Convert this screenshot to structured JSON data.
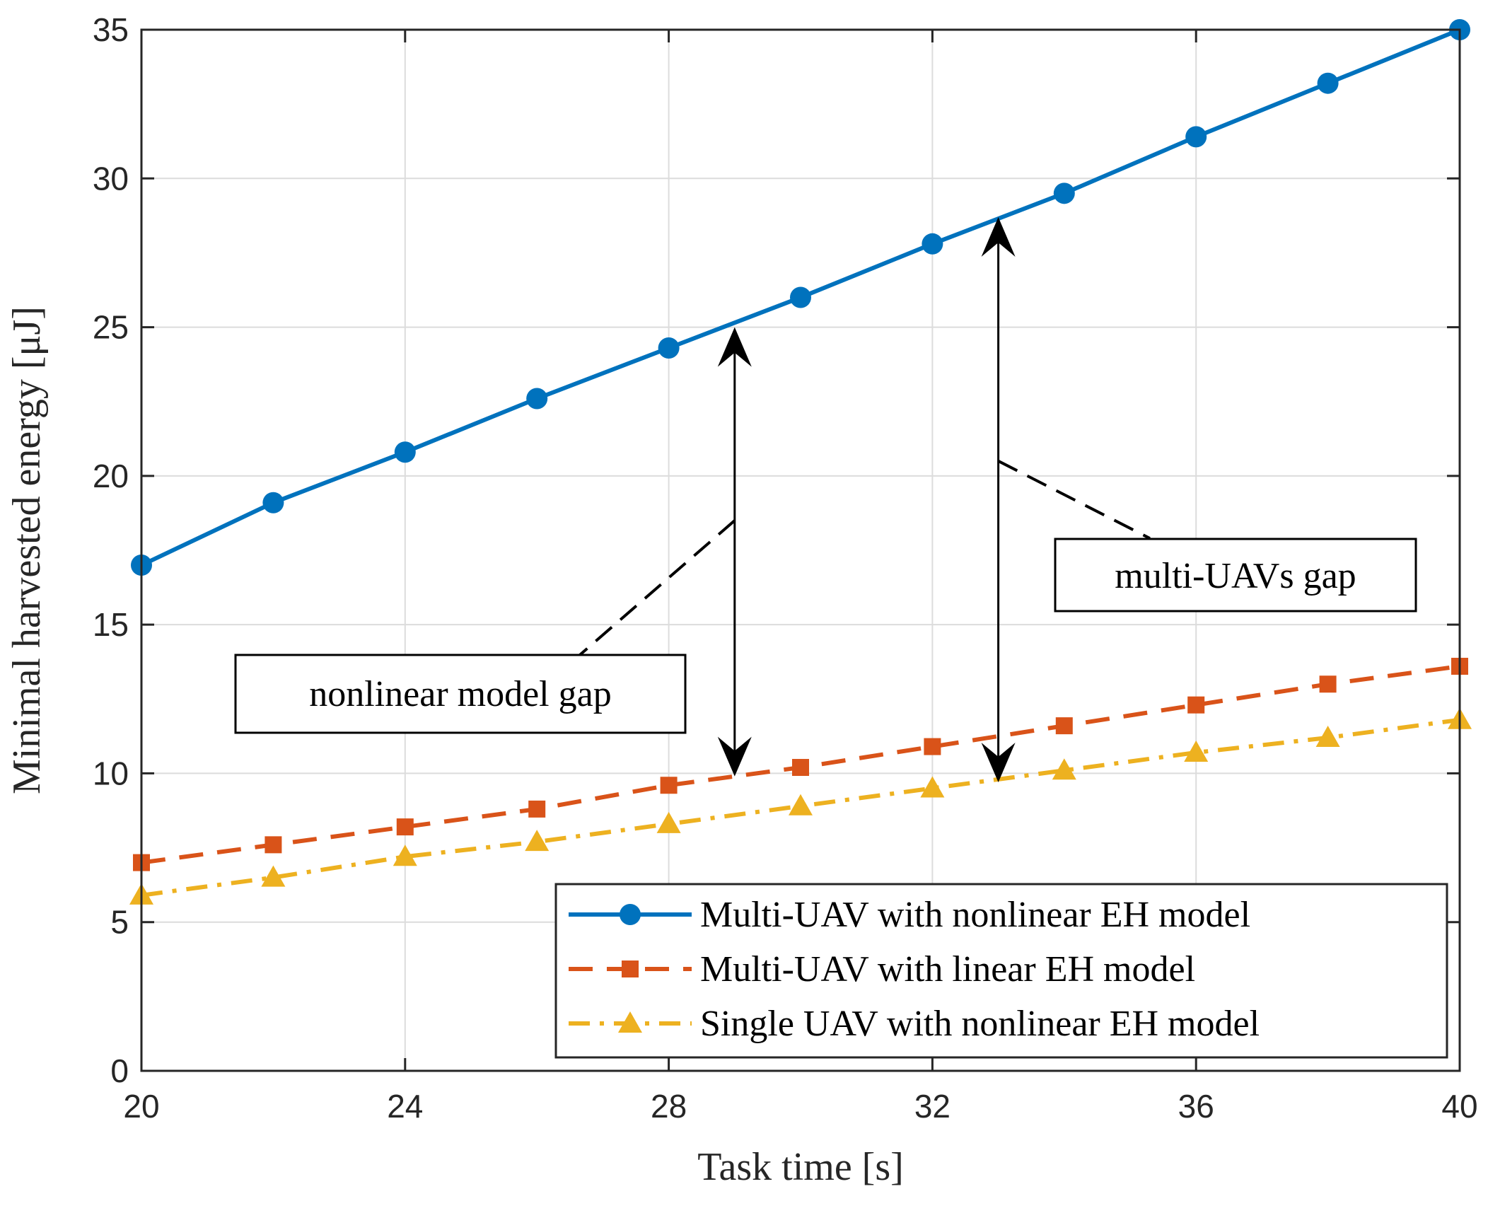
{
  "chart_data": {
    "type": "line",
    "title": "",
    "xlabel": "Task time [s]",
    "ylabel": "Minimal harvested energy [μJ]",
    "xlim": [
      20,
      40
    ],
    "ylim": [
      0,
      35
    ],
    "xticks": [
      20,
      24,
      28,
      32,
      36,
      40
    ],
    "yticks": [
      0,
      5,
      10,
      15,
      20,
      25,
      30,
      35
    ],
    "grid": true,
    "legend_position": "bottom-right",
    "x": [
      20,
      22,
      24,
      26,
      28,
      30,
      32,
      34,
      36,
      38,
      40
    ],
    "series": [
      {
        "name": "Multi-UAV with nonlinear EH model",
        "color": "#0072BD",
        "line_style": "solid",
        "marker": "circle",
        "values": [
          17.0,
          19.1,
          20.8,
          22.6,
          24.3,
          26.0,
          27.8,
          29.5,
          31.4,
          33.2,
          35.0
        ]
      },
      {
        "name": "Multi-UAV with linear EH model",
        "color": "#D95319",
        "line_style": "dashed",
        "marker": "square",
        "values": [
          7.0,
          7.6,
          8.2,
          8.8,
          9.6,
          10.2,
          10.9,
          11.6,
          12.3,
          13.0,
          13.6
        ]
      },
      {
        "name": "Single UAV with nonlinear EH model",
        "color": "#EDB120",
        "line_style": "dashdot",
        "marker": "triangle",
        "values": [
          5.9,
          6.5,
          7.2,
          7.7,
          8.3,
          8.9,
          9.5,
          10.1,
          10.7,
          11.2,
          11.8
        ]
      }
    ],
    "annotations": [
      {
        "text": "nonlinear model gap",
        "arrow": {
          "x": 29.0,
          "y_from": 25.0,
          "y_to": 9.9
        },
        "leader": {
          "from": [
            29.0,
            18.5
          ],
          "to": [
            26.4,
            13.5
          ]
        }
      },
      {
        "text": "multi-UAVs gap",
        "arrow": {
          "x": 33.0,
          "y_from": 28.7,
          "y_to": 9.7
        },
        "leader": {
          "from": [
            33.0,
            20.5
          ],
          "to": [
            35.3,
            17.9
          ]
        }
      }
    ]
  }
}
